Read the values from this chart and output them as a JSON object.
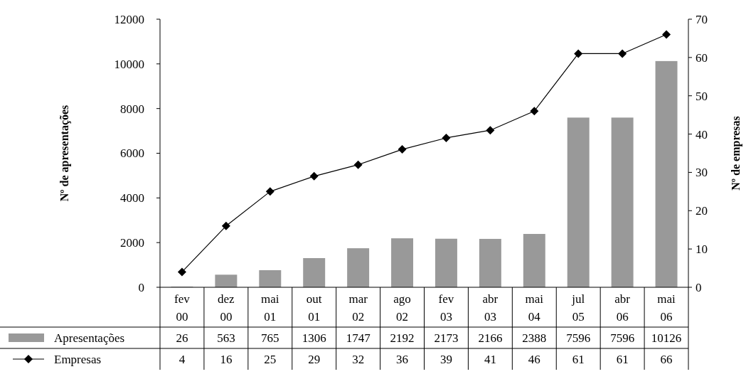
{
  "chart_data": {
    "type": "bar",
    "categories": [
      "fev 00",
      "dez 00",
      "mai 01",
      "out 01",
      "mar 02",
      "ago 02",
      "fev 03",
      "abr 03",
      "mai 04",
      "jul 05",
      "abr 06",
      "mai 06"
    ],
    "series": [
      {
        "name": "Apresentações",
        "color": "#999999",
        "values": [
          26,
          563,
          765,
          1306,
          1747,
          2192,
          2173,
          2166,
          2388,
          7596,
          7596,
          10126
        ]
      },
      {
        "name": "Empresas",
        "type": "line",
        "axis": "y2",
        "color": "#000000",
        "marker": "diamond",
        "values": [
          4,
          16,
          25,
          29,
          32,
          36,
          39,
          41,
          46,
          61,
          61,
          66
        ]
      }
    ],
    "ylabel": "Nº de apresentações",
    "y2label": "Nº de empresas",
    "ylim": [
      0,
      12000
    ],
    "yticks": [
      0,
      2000,
      4000,
      6000,
      8000,
      10000,
      12000
    ],
    "y2lim": [
      0,
      70
    ],
    "y2ticks": [
      0,
      10,
      20,
      30,
      40,
      50,
      60,
      70
    ],
    "data_labels": true,
    "legend": "bottom",
    "grid": false
  }
}
